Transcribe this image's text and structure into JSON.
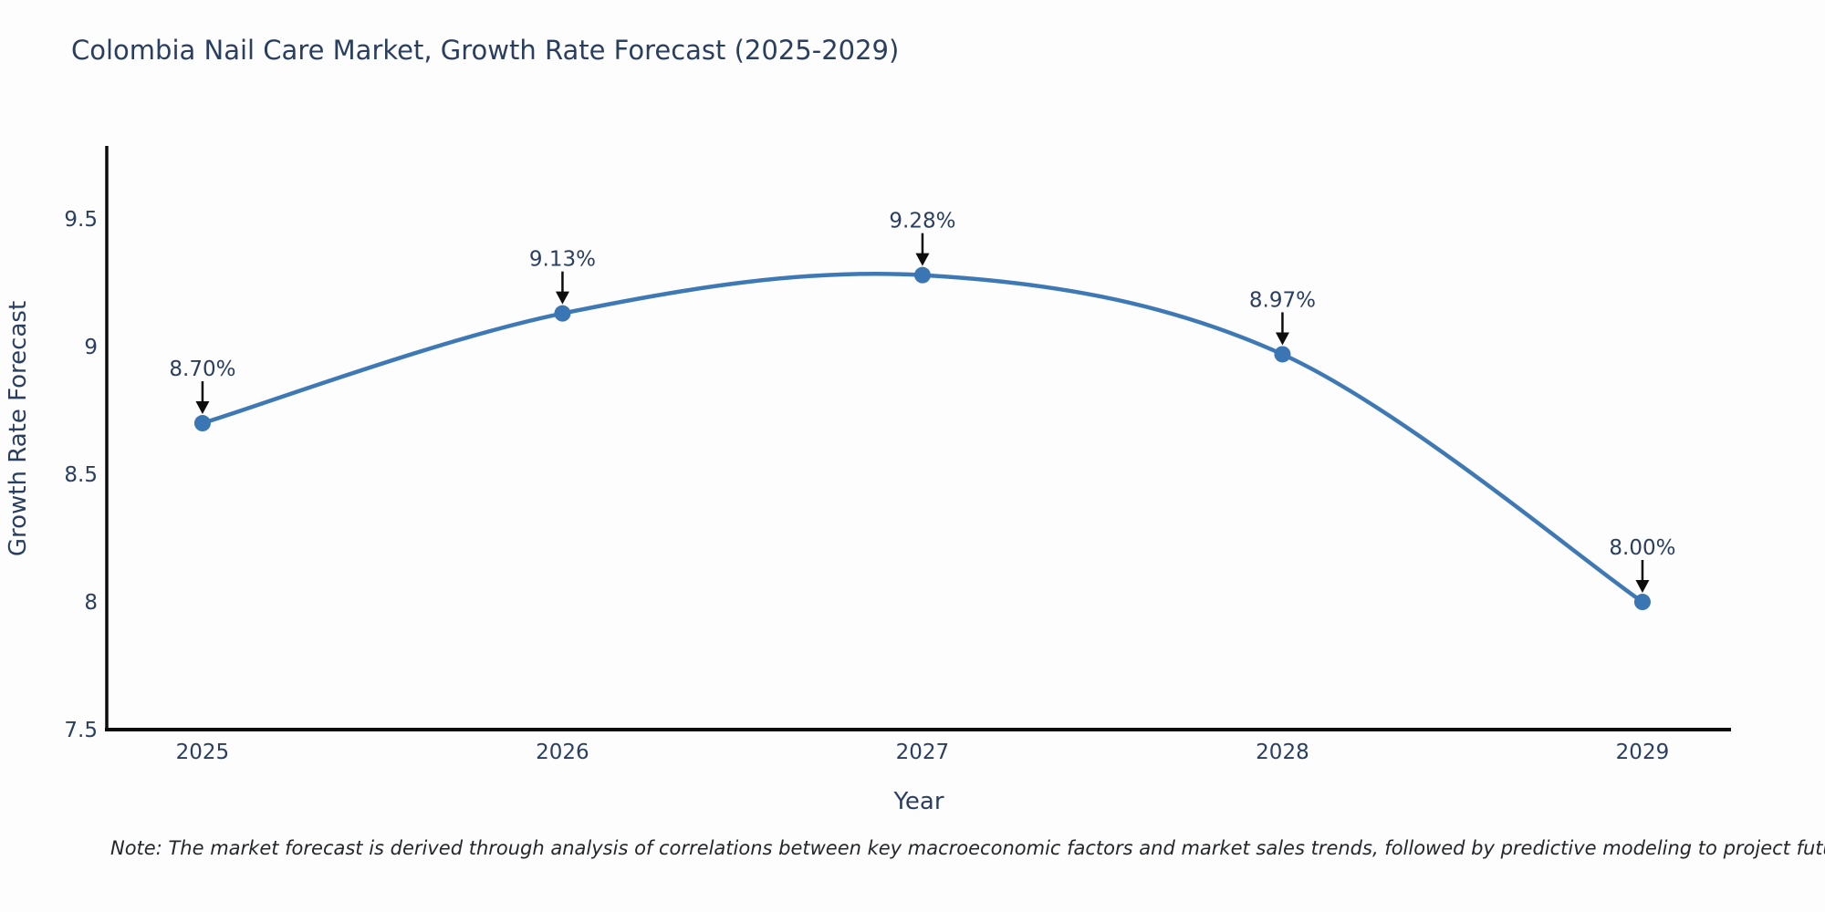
{
  "title": "Colombia Nail Care Market, Growth Rate Forecast (2025-2029)",
  "note": "Note: The market forecast is derived through analysis of correlations between key macroeconomic factors and market sales trends, followed by predictive modeling to project future sales",
  "chart_data": {
    "type": "line",
    "title": "Colombia Nail Care Market, Growth Rate Forecast (2025-2029)",
    "x": [
      2025,
      2026,
      2027,
      2028,
      2029
    ],
    "values": [
      8.7,
      9.13,
      9.28,
      8.97,
      8.0
    ],
    "point_labels": [
      "8.70%",
      "9.13%",
      "9.28%",
      "8.97%",
      "8.00%"
    ],
    "xlabel": "Year",
    "ylabel": "Growth Rate Forecast",
    "xticks": [
      "2025",
      "2026",
      "2027",
      "2028",
      "2029"
    ],
    "yticks": [
      "7.5",
      "8",
      "8.5",
      "9",
      "9.5"
    ],
    "ytick_values": [
      7.5,
      8,
      8.5,
      9,
      9.5
    ],
    "xlim": [
      2024.734,
      2029.246
    ],
    "ylim": [
      7.5,
      9.786
    ],
    "line_shape": "spline",
    "grid": false,
    "legend_position": "none",
    "line_color": "#3e79b5",
    "marker_color": "#3a76b3",
    "axis_color": "#0d0d0d",
    "text_color": "#2a3f5f",
    "annotation_arrow_color": "#0d0d0d"
  }
}
